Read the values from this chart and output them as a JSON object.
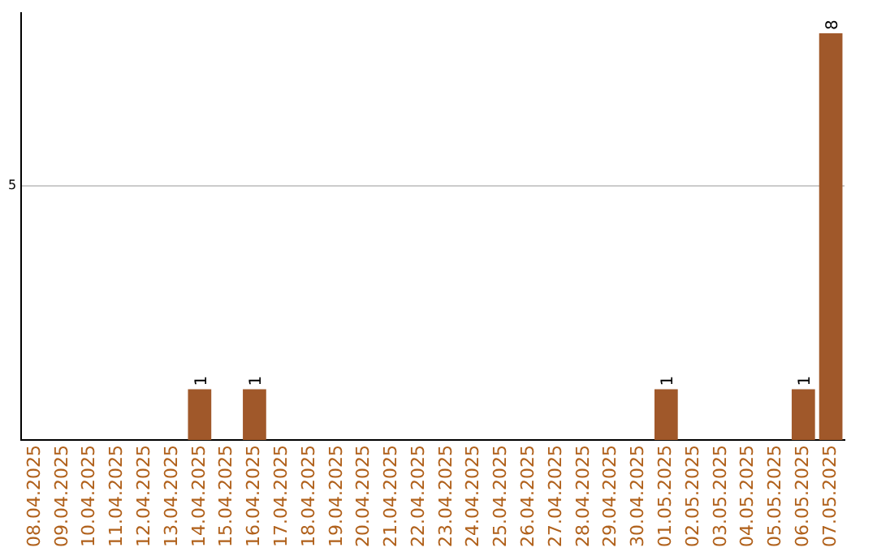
{
  "chart_data": {
    "type": "bar",
    "categories": [
      "08.04.2025",
      "09.04.2025",
      "10.04.2025",
      "11.04.2025",
      "12.04.2025",
      "13.04.2025",
      "14.04.2025",
      "15.04.2025",
      "16.04.2025",
      "17.04.2025",
      "18.04.2025",
      "19.04.2025",
      "20.04.2025",
      "21.04.2025",
      "22.04.2025",
      "23.04.2025",
      "24.04.2025",
      "25.04.2025",
      "26.04.2025",
      "27.04.2025",
      "28.04.2025",
      "29.04.2025",
      "30.04.2025",
      "01.05.2025",
      "02.05.2025",
      "03.05.2025",
      "04.05.2025",
      "05.05.2025",
      "06.05.2025",
      "07.05.2025"
    ],
    "values": [
      0,
      0,
      0,
      0,
      0,
      0,
      1,
      0,
      1,
      0,
      0,
      0,
      0,
      0,
      0,
      0,
      0,
      0,
      0,
      0,
      0,
      0,
      0,
      1,
      0,
      0,
      0,
      0,
      1,
      8
    ],
    "value_labels": [
      null,
      null,
      null,
      null,
      null,
      null,
      "1",
      null,
      "1",
      null,
      null,
      null,
      null,
      null,
      null,
      null,
      null,
      null,
      null,
      null,
      null,
      null,
      null,
      "1",
      null,
      null,
      null,
      null,
      "1",
      "8"
    ],
    "color": "#a0582a",
    "ylim": [
      0,
      8.4
    ],
    "yticks": [
      5
    ],
    "grid": "y",
    "legend": false
  }
}
